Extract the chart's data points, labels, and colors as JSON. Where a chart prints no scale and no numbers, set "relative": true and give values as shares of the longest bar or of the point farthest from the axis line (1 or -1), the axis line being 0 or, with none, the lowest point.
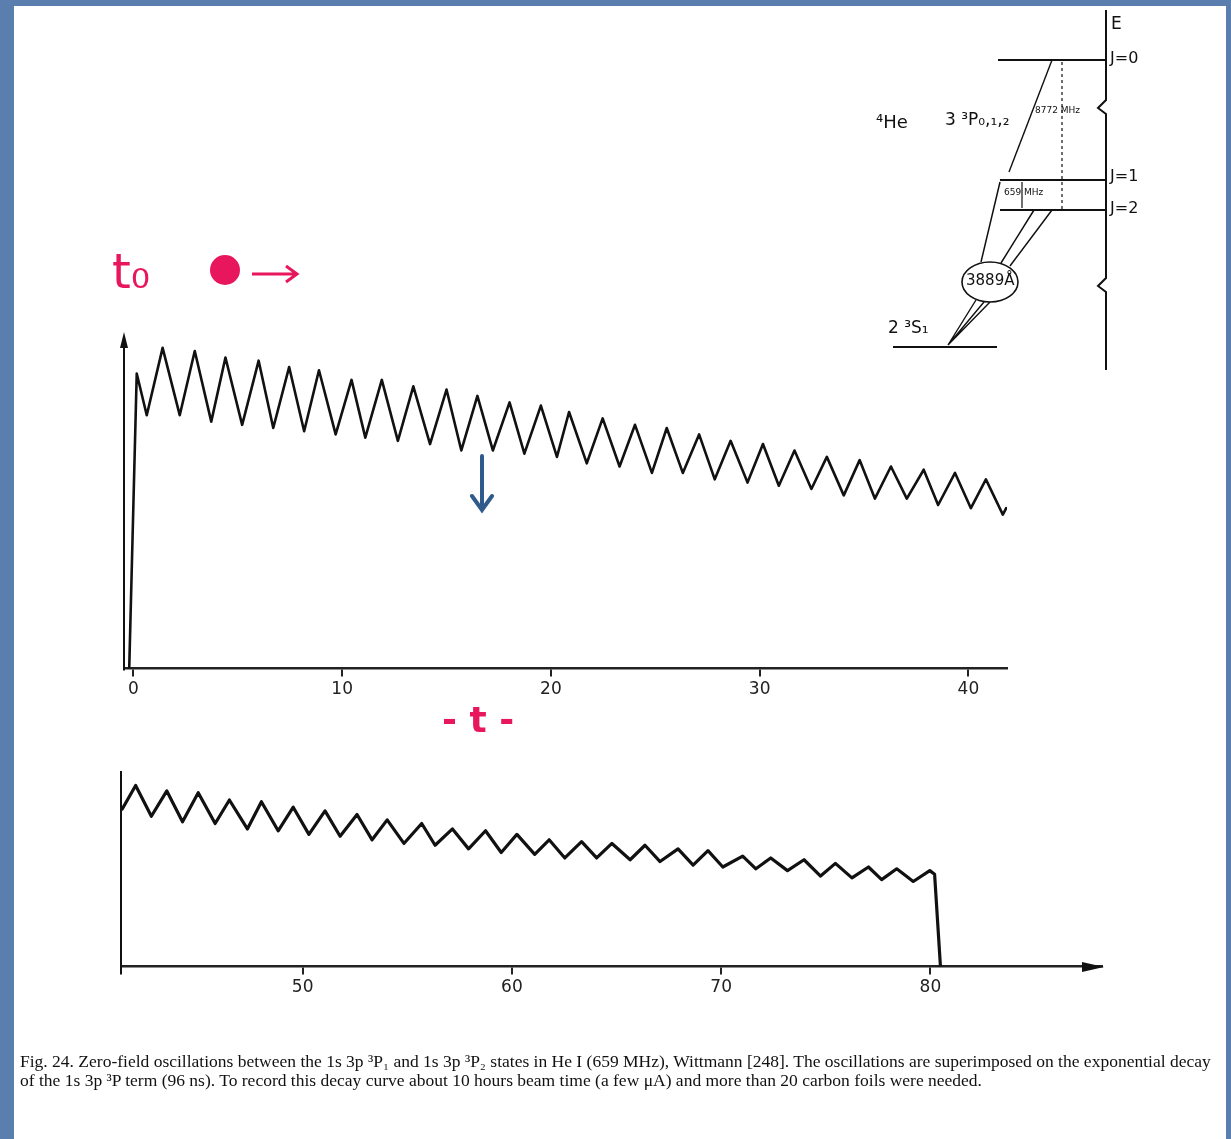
{
  "chart_data": [
    {
      "type": "line",
      "relative": true,
      "xlim": [
        -0.45,
        41.85
      ],
      "xticks": [
        0,
        10,
        20,
        30,
        40
      ],
      "annotations": [
        "t₀",
        "- t -",
        "E",
        "J=0",
        "⁴He",
        "3 ³P₀,₁,₂",
        "8772 MHz",
        "J=1",
        "J=2",
        "659 MHz",
        "3889Å",
        "2 ³S₁"
      ],
      "series": [
        {
          "color": "#111111",
          "x": [
            -0.2,
            0.16,
            0.64,
            1.4,
            2.22,
            2.94,
            3.73,
            4.41,
            5.21,
            6.0,
            6.7,
            7.46,
            8.18,
            8.89,
            9.69,
            10.45,
            11.11,
            11.9,
            12.67,
            13.41,
            14.21,
            15.0,
            15.71,
            16.48,
            17.22,
            18.02,
            18.73,
            19.52,
            20.29,
            20.87,
            21.72,
            22.48,
            23.29,
            24.03,
            24.84,
            25.55,
            26.32,
            27.1,
            27.85,
            28.61,
            29.42,
            30.16,
            30.92,
            31.67,
            32.48,
            33.22,
            34.03,
            34.79,
            35.52,
            36.29,
            37.05,
            37.86,
            38.55,
            39.36,
            40.12,
            40.84,
            41.65,
            41.81
          ],
          "values": [
            0,
            0.92,
            0.79,
            1.0,
            0.79,
            0.99,
            0.77,
            0.97,
            0.76,
            0.96,
            0.75,
            0.94,
            0.74,
            0.93,
            0.73,
            0.9,
            0.72,
            0.9,
            0.71,
            0.88,
            0.7,
            0.87,
            0.68,
            0.85,
            0.68,
            0.83,
            0.67,
            0.82,
            0.66,
            0.8,
            0.64,
            0.78,
            0.63,
            0.76,
            0.61,
            0.75,
            0.61,
            0.73,
            0.59,
            0.71,
            0.58,
            0.7,
            0.57,
            0.68,
            0.56,
            0.66,
            0.54,
            0.65,
            0.53,
            0.63,
            0.53,
            0.62,
            0.51,
            0.61,
            0.5,
            0.59,
            0.48,
            0.5
          ]
        }
      ]
    },
    {
      "type": "line",
      "relative": true,
      "xlim": [
        41.32,
        88.2
      ],
      "xticks": [
        50,
        60,
        70,
        80
      ],
      "annotations": [
        "Fig. 24. Zero-field oscillations between the 1s 3p ³P₁ and 1s 3p ³P₂ states in He I (659 MHz), Wittmann [248]. The oscillations are superimposed on the exponential decay of the 1s 3p ³P term (96 ns). To record this decay curve about 10 hours beam time (a few μA) and more than 20 carbon foils were needed."
      ],
      "series": [
        {
          "color": "#111111",
          "x": [
            41.38,
            42.02,
            42.77,
            43.51,
            44.26,
            45.01,
            45.82,
            46.5,
            47.36,
            48.03,
            48.83,
            49.55,
            50.3,
            51.07,
            51.79,
            52.6,
            53.32,
            54.04,
            54.84,
            55.69,
            56.33,
            57.16,
            57.93,
            58.74,
            59.49,
            60.24,
            61.09,
            61.78,
            62.53,
            63.33,
            64.05,
            64.78,
            65.65,
            66.36,
            67.08,
            67.94,
            68.66,
            69.37,
            70.08,
            71.03,
            71.66,
            72.37,
            73.17,
            73.96,
            74.75,
            75.46,
            76.25,
            77.04,
            77.67,
            78.39,
            79.18,
            79.97,
            80.2,
            80.48
          ],
          "values": [
            0.87,
            1.0,
            0.83,
            0.97,
            0.8,
            0.96,
            0.79,
            0.92,
            0.76,
            0.91,
            0.75,
            0.88,
            0.73,
            0.86,
            0.72,
            0.84,
            0.7,
            0.81,
            0.68,
            0.79,
            0.67,
            0.76,
            0.65,
            0.75,
            0.63,
            0.73,
            0.62,
            0.7,
            0.6,
            0.69,
            0.6,
            0.68,
            0.59,
            0.67,
            0.58,
            0.65,
            0.56,
            0.64,
            0.55,
            0.61,
            0.54,
            0.6,
            0.53,
            0.59,
            0.5,
            0.57,
            0.49,
            0.55,
            0.48,
            0.54,
            0.47,
            0.53,
            0.51,
            0
          ]
        }
      ]
    }
  ]
}
